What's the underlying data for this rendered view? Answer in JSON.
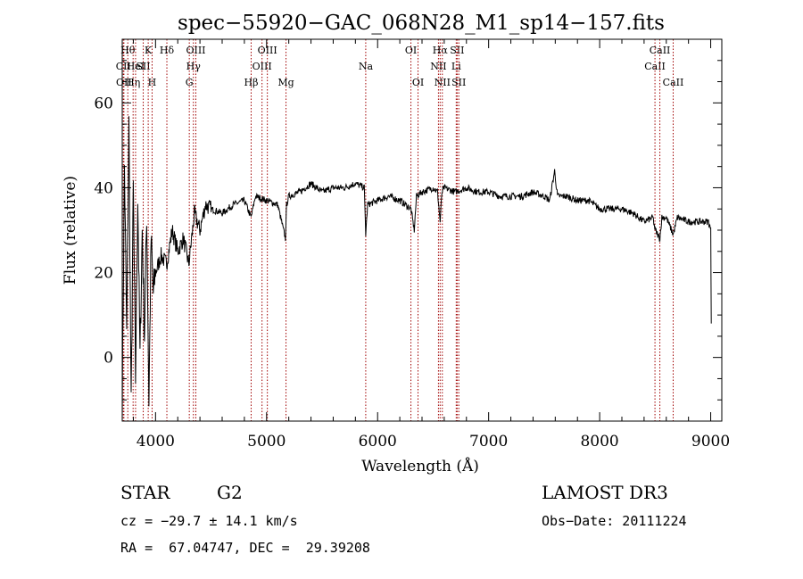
{
  "chart_data": {
    "type": "line",
    "title": "spec−55920−GAC_068N28_M1_sp14−157.fits",
    "xlabel": "Wavelength (Å)",
    "ylabel": "Flux (relative)",
    "xlim": [
      3700,
      9100
    ],
    "ylim": [
      -15,
      75
    ],
    "x_ticks": [
      4000,
      5000,
      6000,
      7000,
      8000,
      9000
    ],
    "y_ticks": [
      0,
      20,
      40,
      60
    ],
    "x_minor_step": 200,
    "y_minor_step": 5,
    "series": [
      {
        "name": "flux",
        "color": "#000000",
        "x": [
          3700,
          3720,
          3740,
          3760,
          3780,
          3800,
          3820,
          3840,
          3860,
          3880,
          3900,
          3920,
          3940,
          3960,
          3980,
          4000,
          4050,
          4100,
          4150,
          4200,
          4250,
          4300,
          4350,
          4400,
          4450,
          4500,
          4600,
          4700,
          4800,
          4860,
          4900,
          5000,
          5100,
          5170,
          5180,
          5200,
          5300,
          5400,
          5500,
          5600,
          5700,
          5800,
          5880,
          5893,
          5910,
          6000,
          6100,
          6200,
          6300,
          6330,
          6350,
          6400,
          6500,
          6540,
          6563,
          6580,
          6600,
          6700,
          6800,
          6900,
          7000,
          7100,
          7200,
          7300,
          7400,
          7500,
          7550,
          7594,
          7620,
          7700,
          7800,
          7900,
          8000,
          8100,
          8200,
          8300,
          8400,
          8480,
          8500,
          8542,
          8560,
          8600,
          8662,
          8700,
          8800,
          8900,
          8980,
          9000,
          9005
        ],
        "y": [
          -10,
          45,
          5,
          55,
          -12,
          40,
          -5,
          38,
          0,
          30,
          5,
          34,
          -10,
          28,
          15,
          20,
          24,
          22,
          30,
          25,
          28,
          22,
          34,
          30,
          36,
          35,
          34,
          36,
          37,
          33,
          38,
          37,
          36,
          28,
          36,
          38,
          39,
          41,
          39,
          40,
          40,
          41,
          40,
          29,
          36,
          37,
          38,
          37,
          35,
          30,
          38,
          39,
          40,
          39,
          32,
          39,
          40,
          39,
          40,
          39,
          39,
          38,
          38,
          38,
          39,
          38,
          37,
          44,
          38,
          38,
          37,
          37,
          35,
          35,
          35,
          34,
          32,
          33,
          30,
          28,
          33,
          33,
          29,
          33,
          32,
          32,
          32,
          30,
          8
        ]
      }
    ],
    "line_color": "#a00000",
    "lines": [
      {
        "x": 3710,
        "label": "CII",
        "row": 1
      },
      {
        "x": 3715,
        "label": "OII",
        "row": 2
      },
      {
        "x": 3750,
        "label": "Hθ",
        "row": 0
      },
      {
        "x": 3798,
        "label": "Hη",
        "row": 2
      },
      {
        "x": 3820,
        "label": "HeI",
        "row": 1
      },
      {
        "x": 3889,
        "label": "SII",
        "row": 1
      },
      {
        "x": 3934,
        "label": "K",
        "row": 0
      },
      {
        "x": 3969,
        "label": "H",
        "row": 2
      },
      {
        "x": 4102,
        "label": "Hδ",
        "row": 0
      },
      {
        "x": 4304,
        "label": "G",
        "row": 2
      },
      {
        "x": 4341,
        "label": "Hγ",
        "row": 1
      },
      {
        "x": 4363,
        "label": "OIII",
        "row": 0
      },
      {
        "x": 4861,
        "label": "Hβ",
        "row": 2
      },
      {
        "x": 4959,
        "label": "OIII",
        "row": 1
      },
      {
        "x": 5007,
        "label": "OIII",
        "row": 0
      },
      {
        "x": 5175,
        "label": "Mg",
        "row": 2
      },
      {
        "x": 5893,
        "label": "Na",
        "row": 1
      },
      {
        "x": 6300,
        "label": "OI",
        "row": 0
      },
      {
        "x": 6364,
        "label": "OI",
        "row": 2
      },
      {
        "x": 6548,
        "label": "NII",
        "row": 1
      },
      {
        "x": 6563,
        "label": "Hα",
        "row": 0
      },
      {
        "x": 6583,
        "label": "NII",
        "row": 2
      },
      {
        "x": 6708,
        "label": "Li",
        "row": 1
      },
      {
        "x": 6716,
        "label": "SII",
        "row": 0
      },
      {
        "x": 6731,
        "label": "SII",
        "row": 2
      },
      {
        "x": 8498,
        "label": "CaII",
        "row": 1
      },
      {
        "x": 8542,
        "label": "CaII",
        "row": 0
      },
      {
        "x": 8662,
        "label": "CaII",
        "row": 2
      }
    ]
  },
  "info": {
    "object_class": "STAR",
    "subclass": "G2",
    "survey": "LAMOST DR3",
    "cz": "cz = −29.7 ± 14.1 km/s",
    "obs_date": "Obs−Date: 20111224",
    "coords": "RA =  67.04747, DEC =  29.39208"
  }
}
